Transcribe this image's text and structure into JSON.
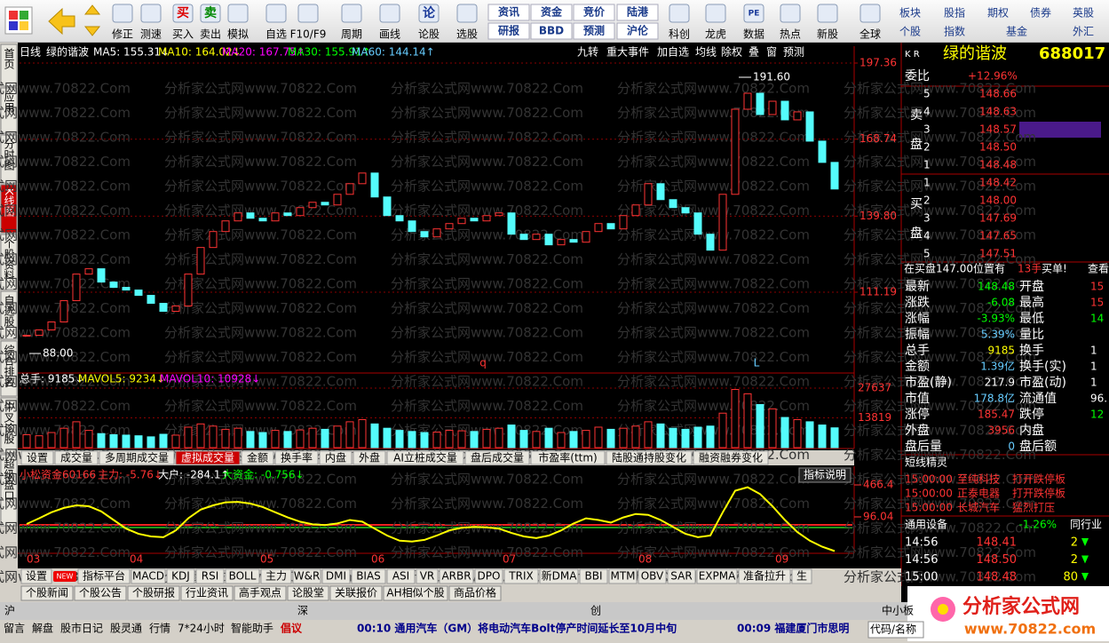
{
  "toolbar": {
    "buttons": [
      "修正",
      "测速",
      "买入",
      "卖出",
      "模拟",
      "自选",
      "F10/F9",
      "周期",
      "画线",
      "论股",
      "选股",
      "科创",
      "龙虎",
      "数据",
      "热点",
      "新股",
      "全球"
    ],
    "icons": {
      "buy": "买",
      "sell": "卖",
      "lun": "论",
      "pe": "PE"
    },
    "stacked": [
      [
        "资讯",
        "研报"
      ],
      [
        "资金",
        "BBD"
      ],
      [
        "竞价",
        "预测"
      ],
      [
        "陆港",
        "沪伦"
      ]
    ],
    "markets_top": [
      "板块",
      "股指",
      "期权",
      "债券",
      "英股"
    ],
    "markets_bottom": [
      "个股",
      "指数",
      "基金",
      "外汇"
    ]
  },
  "sidebar": [
    "首页",
    "应用",
    "分时图",
    "K线图",
    "个股资料",
    "自选股",
    "综合排名",
    "牛叉诊股",
    "超级盘口"
  ],
  "watermark": "分析家公式网www.70822.Com",
  "chart": {
    "period": "日线",
    "stock": "绿的谐波",
    "ma": [
      "MA5: 155.31↓",
      "MA10: 164.02↓",
      "MA20: 167.75↑",
      "MA30: 155.91↑",
      "MA60: 144.14↑"
    ],
    "tools": [
      "九转",
      "重大事件",
      "加自选",
      "均线",
      "除权",
      "叠",
      "窗",
      "预测"
    ],
    "high_label": "191.60",
    "low_label": "88.00",
    "marks": [
      "q",
      "L"
    ],
    "price_ticks": [
      197.36,
      168.74,
      {
        "value": 139.8,
        "label": "139.80"
      },
      111.19
    ],
    "closes": [
      95,
      97,
      100,
      108,
      118,
      120,
      115,
      113,
      112,
      110,
      107,
      104,
      106,
      118,
      128,
      134,
      138,
      141,
      139,
      138,
      141,
      140,
      143,
      145,
      144,
      148,
      152,
      156,
      147,
      140,
      138,
      134,
      132,
      135,
      137,
      139,
      138,
      140,
      141,
      133,
      131,
      133,
      129,
      131,
      130,
      134,
      137,
      135,
      140,
      144,
      152,
      146,
      143,
      141,
      133,
      127,
      148,
      180,
      186,
      178,
      183,
      176,
      179,
      168,
      160,
      150
    ],
    "volume_header": [
      "总手: 9185↓",
      "MAVOL5: 9234↓",
      "MAVOL10: 10928↓"
    ],
    "volume_ticks": [
      27637,
      13819
    ],
    "volumes": [
      6000,
      5500,
      7000,
      9000,
      12000,
      8000,
      6500,
      6000,
      5800,
      5500,
      5000,
      6200,
      5800,
      9500,
      11000,
      10000,
      8500,
      9000,
      7500,
      7000,
      8000,
      7500,
      8200,
      9000,
      8500,
      10000,
      12000,
      13000,
      11000,
      9000,
      8000,
      7500,
      7000,
      7200,
      8000,
      7800,
      7500,
      8500,
      9000,
      10500,
      8000,
      7500,
      9000,
      7000,
      7500,
      8000,
      9500,
      8500,
      9000,
      10000,
      12000,
      11000,
      9000,
      8500,
      9500,
      10000,
      16000,
      27000,
      25000,
      20000,
      18000,
      14000,
      13000,
      12000,
      10500,
      9185
    ],
    "volume_tabs": [
      "设置",
      "成交量",
      "多周期成交量",
      "虚拟成交量",
      "金额",
      "换手率",
      "内盘",
      "外盘",
      "AI立桩成交量",
      "盘后成交量",
      "市盈率(ttm)",
      "陆股通持股变化",
      "融资融券变化"
    ],
    "indicator_header": [
      "小松资金60166",
      "主力: -5.76↓",
      "大户: -284.1↑",
      "大资金: -0.756↓"
    ],
    "indicator_button": "指标说明",
    "indicator_ticks": [
      466.4,
      96.04
    ],
    "indicator": [
      14,
      80,
      150,
      200,
      230,
      220,
      160,
      60,
      -40,
      -100,
      -130,
      -140,
      -60,
      80,
      180,
      230,
      265,
      270,
      250,
      210,
      150,
      90,
      40,
      10,
      0,
      20,
      60,
      40,
      -40,
      -120,
      -180,
      -190,
      -170,
      -120,
      -60,
      -30,
      -20,
      -25,
      -40,
      -90,
      -130,
      -150,
      -120,
      -60,
      20,
      80,
      60,
      30,
      90,
      130,
      120,
      60,
      -20,
      -100,
      -140,
      -120,
      150,
      400,
      440,
      360,
      220,
      60,
      -80,
      -180,
      -250,
      -300
    ],
    "months": [
      "03",
      "04",
      "05",
      "06",
      "07",
      "08",
      "09"
    ],
    "new_badge": "NEW",
    "indicator_tabs": [
      "设置",
      "指标平台",
      "MACD",
      "KDJ",
      "RSI",
      "BOLL",
      "主力",
      "W&R",
      "DMI",
      "BIAS",
      "ASI",
      "VR",
      "ARBR",
      "DPO",
      "TRIX",
      "新DMA",
      "BBI",
      "MTM",
      "OBV",
      "SAR",
      "EXPMA",
      "准备拉升",
      "生"
    ]
  },
  "news_tabs": [
    "个股新闻",
    "个股公告",
    "个股研报",
    "行业资讯",
    "高手观点",
    "论股堂",
    "关联报价",
    "AH相似个股",
    "商品价格"
  ],
  "index_bar": [
    "沪",
    "深",
    "创",
    "中小板"
  ],
  "status": {
    "items": [
      "留言",
      "解盘",
      "股市日记",
      "股灵通",
      "行情",
      "7*24小时",
      "智能助手"
    ],
    "tag": "倡议",
    "news": [
      "00:10 通用汽车（GM）将电动汽车Bolt停产时间延长至10月中旬",
      "00:09 福建厦门市思明"
    ],
    "search": "代码/名称"
  },
  "logo": {
    "name": "分析家公式网",
    "url": "www.70822.com"
  },
  "quote": {
    "prefix": "K R",
    "name": "绿的谐波",
    "code": "688017",
    "weibi_label": "委比",
    "weibi": "+12.96%",
    "sell_label": [
      "卖",
      "盘"
    ],
    "buy_label": [
      "买",
      "盘"
    ],
    "sell": [
      [
        5,
        "148.66"
      ],
      [
        4,
        "148.63"
      ],
      [
        3,
        "148.57"
      ],
      [
        2,
        "148.50"
      ],
      [
        1,
        "148.48"
      ]
    ],
    "buy": [
      [
        1,
        "148.42"
      ],
      [
        2,
        "148.00"
      ],
      [
        3,
        "147.69"
      ],
      [
        4,
        "147.65"
      ],
      [
        5,
        "147.51"
      ]
    ],
    "notice": [
      "在买盘147.00位置有",
      "13手",
      "买单!",
      "查看"
    ],
    "stats": [
      [
        "最新",
        "148.48",
        "开盘",
        "15"
      ],
      [
        "涨跌",
        "-6.08",
        "最高",
        "15"
      ],
      [
        "涨幅",
        "-3.93%",
        "最低",
        "14"
      ],
      [
        "振幅",
        "5.39%",
        "量比"
      ],
      [
        "总手",
        "9185",
        "换手",
        "1"
      ],
      [
        "金额",
        "1.39亿",
        "换手(实)",
        "1"
      ],
      [
        "市盈(静)",
        "217.9",
        "市盈(动)",
        "1"
      ],
      [
        "市值",
        "178.8亿",
        "流通值",
        "96."
      ],
      [
        "涨停",
        "185.47",
        "跌停",
        "12"
      ],
      [
        "外盘",
        "3956",
        "内盘"
      ],
      [
        "盘后量",
        "0",
        "盘后额"
      ]
    ],
    "alerts_title": "短线精灵",
    "alerts": [
      [
        "15:00:00",
        "至纯科技",
        "打开跌停板"
      ],
      [
        "15:00:00",
        "正泰电器",
        "打开跌停板"
      ],
      [
        "15:00:00",
        "长城汽车",
        "猛烈打压"
      ]
    ],
    "industry": [
      "通用设备",
      "-1.26%",
      "同行业"
    ],
    "ticks": [
      [
        "14:56",
        "148.41",
        "2"
      ],
      [
        "14:56",
        "148.50",
        "2"
      ],
      [
        "15:00",
        "148.48",
        "80"
      ]
    ]
  }
}
